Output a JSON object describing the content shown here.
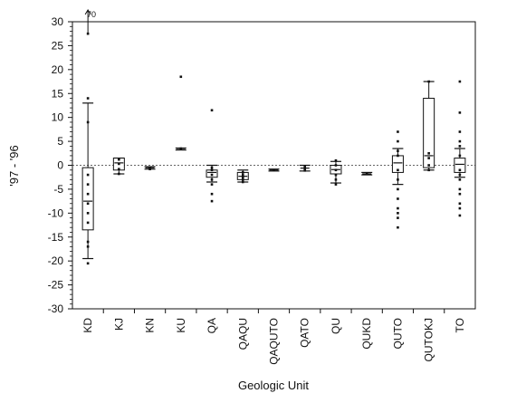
{
  "chart_data": {
    "type": "boxplot",
    "xlabel": "Geologic Unit",
    "ylabel": "'97 - '96",
    "ylim": [
      -30,
      30
    ],
    "yticks": [
      30,
      25,
      20,
      15,
      10,
      5,
      0,
      -5,
      -10,
      -15,
      -20,
      -25,
      -30
    ],
    "grid": false,
    "reference_line": 0,
    "annotation": {
      "text": "70",
      "category": "KD",
      "note": "off-scale value"
    },
    "categories": [
      "KD",
      "KJ",
      "KN",
      "KU",
      "QA",
      "QAQU",
      "QAQUTO",
      "QATO",
      "QU",
      "QUKD",
      "QUTO",
      "QUTOKJ",
      "TO"
    ],
    "units": [
      {
        "name": "KD",
        "box": [
          -13.5,
          -0.5
        ],
        "median": -7.5,
        "whiskers": [
          -19.5,
          13
        ],
        "points": [
          27.5,
          14,
          9,
          -2,
          -4,
          -6,
          -8,
          -10,
          -12,
          -16,
          -17,
          -20.5
        ]
      },
      {
        "name": "KJ",
        "box": [
          -1,
          1.5
        ],
        "median": 0.5,
        "whiskers": [
          -1.8,
          1.5
        ],
        "points": [
          1.2,
          0.3,
          -0.8,
          -1.8
        ]
      },
      {
        "name": "KN",
        "box": null,
        "median": -0.5,
        "whiskers": [
          -0.8,
          -0.3
        ],
        "points": [
          -0.5,
          -0.8
        ]
      },
      {
        "name": "KU",
        "box": null,
        "median": 3.5,
        "whiskers": [
          3.2,
          3.6
        ],
        "points": [
          3.5,
          18.5
        ]
      },
      {
        "name": "QA",
        "box": [
          -2.5,
          -1
        ],
        "median": -1.5,
        "whiskers": [
          -3.5,
          0
        ],
        "points": [
          11.5,
          -0.5,
          -1,
          -2,
          -3,
          -4,
          -6,
          -7.5
        ]
      },
      {
        "name": "QAQU",
        "box": [
          -3,
          -1.5
        ],
        "median": -2.3,
        "whiskers": [
          -3.5,
          -1
        ],
        "points": [
          -1.5,
          -2,
          -2.5,
          -3,
          -3.5
        ]
      },
      {
        "name": "QAQUTO",
        "box": null,
        "median": -1,
        "whiskers": [
          -1.2,
          -0.8
        ],
        "points": [
          -1
        ]
      },
      {
        "name": "QATO",
        "box": null,
        "median": -0.6,
        "whiskers": [
          -1.2,
          0
        ],
        "points": [
          -0.2,
          -0.5,
          -0.8,
          -1.1
        ]
      },
      {
        "name": "QU",
        "box": [
          -1.8,
          0
        ],
        "median": -0.9,
        "whiskers": [
          -3.7,
          0.8
        ],
        "points": [
          1,
          0,
          -1,
          -2,
          -3,
          -4
        ]
      },
      {
        "name": "QUKD",
        "box": null,
        "median": -1.8,
        "whiskers": [
          -2,
          -1.5
        ],
        "points": [
          -1.8
        ]
      },
      {
        "name": "QUTO",
        "box": [
          -1.5,
          2
        ],
        "median": 0.5,
        "whiskers": [
          -4,
          3.5
        ],
        "points": [
          7,
          5,
          3,
          2,
          -1,
          -3,
          -5,
          -7,
          -9,
          -10,
          -11,
          -13
        ]
      },
      {
        "name": "QUTOKJ",
        "box": [
          -0.5,
          14
        ],
        "median": 2,
        "whiskers": [
          -1,
          17.5
        ],
        "points": [
          17.5,
          2.5,
          1.5,
          0,
          -1
        ]
      },
      {
        "name": "TO",
        "box": [
          -1.5,
          1.5
        ],
        "median": 0.2,
        "whiskers": [
          -2.5,
          3.5
        ],
        "points": [
          17.5,
          11,
          7,
          5,
          4,
          2,
          -1,
          -2,
          -3,
          -5,
          -6,
          -8,
          -9,
          -10.5
        ]
      }
    ]
  }
}
